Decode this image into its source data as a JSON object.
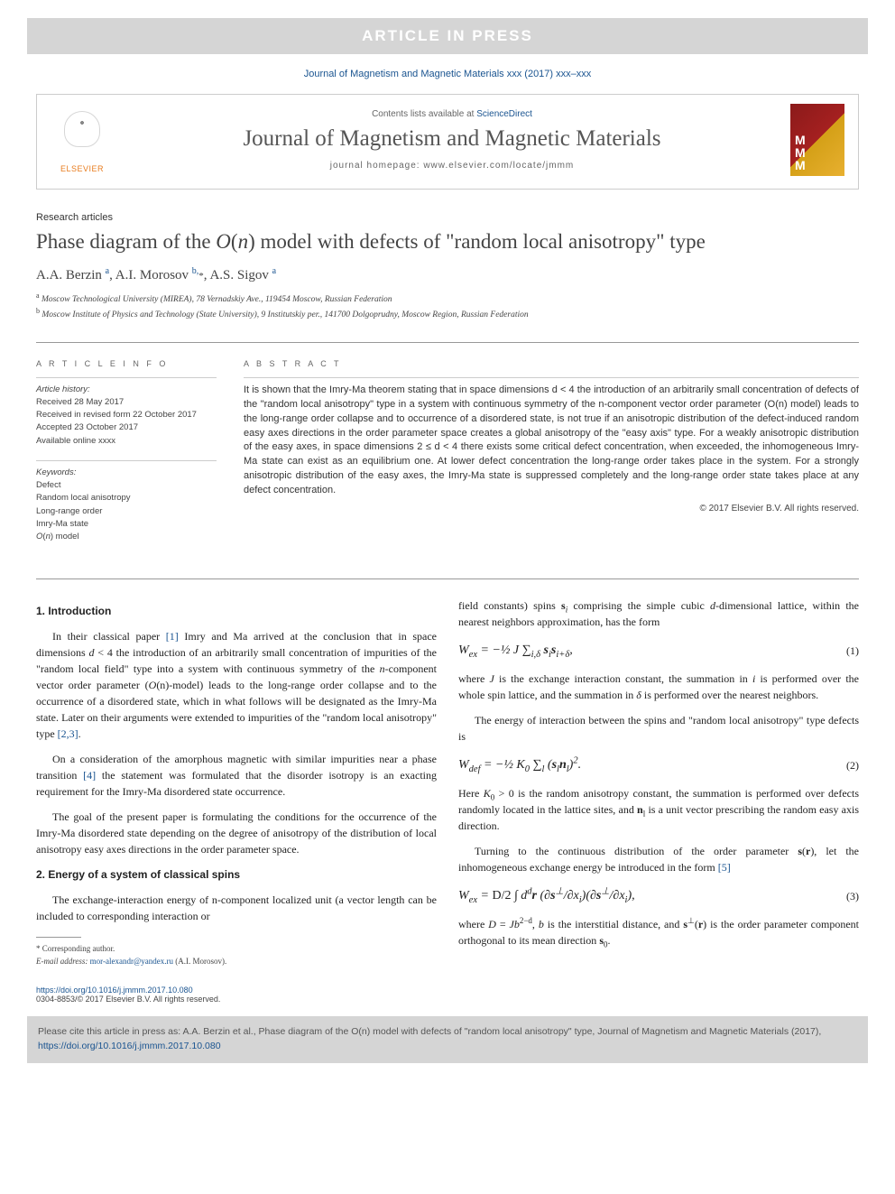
{
  "banner": {
    "text": "ARTICLE IN PRESS"
  },
  "journal_ref": "Journal of Magnetism and Magnetic Materials xxx (2017) xxx–xxx",
  "header": {
    "contents_prefix": "Contents lists available at ",
    "contents_link": "ScienceDirect",
    "journal_title": "Journal of Magnetism and Magnetic Materials",
    "homepage_label": "journal homepage: www.elsevier.com/locate/jmmm",
    "elsevier_label": "ELSEVIER"
  },
  "article": {
    "type": "Research articles",
    "title": "Phase diagram of the O(n) model with defects of \"random local anisotropy\" type",
    "authors_html": "A.A. Berzin <sup class='aff'>a</sup>, A.I. Morosov <sup class='aff'>b,</sup><span class='corr'>*</span>, A.S. Sigov <sup class='aff'>a</sup>",
    "affiliations": [
      {
        "sup": "a",
        "text": "Moscow Technological University (MIREA), 78 Vernadskiy Ave., 119454 Moscow, Russian Federation"
      },
      {
        "sup": "b",
        "text": "Moscow Institute of Physics and Technology (State University), 9 Institutskiy per., 141700 Dolgoprudny, Moscow Region, Russian Federation"
      }
    ]
  },
  "info": {
    "heading": "A R T I C L E   I N F O",
    "history_label": "Article history:",
    "history": [
      "Received 28 May 2017",
      "Received in revised form 22 October 2017",
      "Accepted 23 October 2017",
      "Available online xxxx"
    ],
    "keywords_label": "Keywords:",
    "keywords": [
      "Defect",
      "Random local anisotropy",
      "Long-range order",
      "Imry-Ma state",
      "O(n) model"
    ]
  },
  "abstract": {
    "heading": "A B S T R A C T",
    "text": "It is shown that the Imry-Ma theorem stating that in space dimensions d < 4 the introduction of an arbitrarily small concentration of defects of the \"random local anisotropy\" type in a system with continuous symmetry of the n-component vector order parameter (O(n) model) leads to the long-range order collapse and to occurrence of a disordered state, is not true if an anisotropic distribution of the defect-induced random easy axes directions in the order parameter space creates a global anisotropy of the \"easy axis\" type. For a weakly anisotropic distribution of the easy axes, in space dimensions 2 ≤ d < 4 there exists some critical defect concentration, when exceeded, the inhomogeneous Imry-Ma state can exist as an equilibrium one. At lower defect concentration the long-range order takes place in the system. For a strongly anisotropic distribution of the easy axes, the Imry-Ma state is suppressed completely and the long-range order state takes place at any defect concentration.",
    "copyright": "© 2017 Elsevier B.V. All rights reserved."
  },
  "sections": {
    "s1": {
      "heading": "1. Introduction",
      "p1": "In their classical paper [1] Imry and Ma arrived at the conclusion that in space dimensions d < 4 the introduction of an arbitrarily small concentration of impurities of the \"random local field\" type into a system with continuous symmetry of the n-component vector order parameter (O(n)-model) leads to the long-range order collapse and to the occurrence of a disordered state, which in what follows will be designated as the Imry-Ma state. Later on their arguments were extended to impurities of the \"random local anisotropy\" type [2,3].",
      "p2": "On a consideration of the amorphous magnetic with similar impurities near a phase transition [4] the statement was formulated that the disorder isotropy is an exacting requirement for the Imry-Ma disordered state occurrence.",
      "p3": "The goal of the present paper is formulating the conditions for the occurrence of the Imry-Ma disordered state depending on the degree of anisotropy of the distribution of local anisotropy easy axes directions in the order parameter space."
    },
    "s2": {
      "heading": "2. Energy of a system of classical spins",
      "p1": "The exchange-interaction energy of n-component localized unit (a vector length can be included to corresponding interaction or",
      "p_col2_1": "field constants) spins sᵢ comprising the simple cubic d-dimensional lattice, within the nearest neighbors approximation, has the form",
      "eq1": "W_{ex} = -\\frac{1}{2} J \\sum_{i,\\delta} \\mathbf{s}_i \\mathbf{s}_{i+\\delta},",
      "eq1n": "(1)",
      "p_col2_2": "where J is the exchange interaction constant, the summation in i is performed over the whole spin lattice, and the summation in δ is performed over the nearest neighbors.",
      "p_col2_3": "The energy of interaction between the spins and \"random local anisotropy\" type defects is",
      "eq2": "W_{def} = -\\frac{1}{2} K_0 \\sum_l (\\mathbf{s}_l \\mathbf{n}_l)^2.",
      "eq2n": "(2)",
      "p_col2_4": "Here K₀ > 0 is the random anisotropy constant, the summation is performed over defects randomly located in the lattice sites, and nₗ is a unit vector prescribing the random easy axis direction.",
      "p_col2_5": "Turning to the continuous distribution of the order parameter s(r), let the inhomogeneous exchange energy be introduced in the form [5]",
      "eq3": "W_{ex} = \\frac{D}{2} \\int d^d\\mathbf{r} \\frac{\\partial \\mathbf{s}^\\perp}{\\partial x_i} \\frac{\\partial \\mathbf{s}^\\perp}{\\partial x_i},",
      "eq3n": "(3)",
      "p_col2_6": "where D = Jb²⁻ᵈ, b is the interstitial distance, and s⊥(r) is the order parameter component orthogonal to its mean direction s₀."
    }
  },
  "footnotes": {
    "corr": "* Corresponding author.",
    "email_label": "E-mail address:",
    "email": "mor-alexandr@yandex.ru",
    "email_name": "(A.I. Morosov)."
  },
  "doi": {
    "url": "https://doi.org/10.1016/j.jmmm.2017.10.080",
    "issn": "0304-8853/© 2017 Elsevier B.V. All rights reserved."
  },
  "citebox": {
    "text": "Please cite this article in press as: A.A. Berzin et al., Phase diagram of the O(n) model with defects of \"random local anisotropy\" type, Journal of Magnetism and Magnetic Materials (2017), ",
    "link": "https://doi.org/10.1016/j.jmmm.2017.10.080"
  },
  "colors": {
    "banner_bg": "#d5d5d5",
    "link": "#1a5490",
    "elsevier_orange": "#e87c1e",
    "body_text": "#222",
    "meta_text": "#444"
  }
}
